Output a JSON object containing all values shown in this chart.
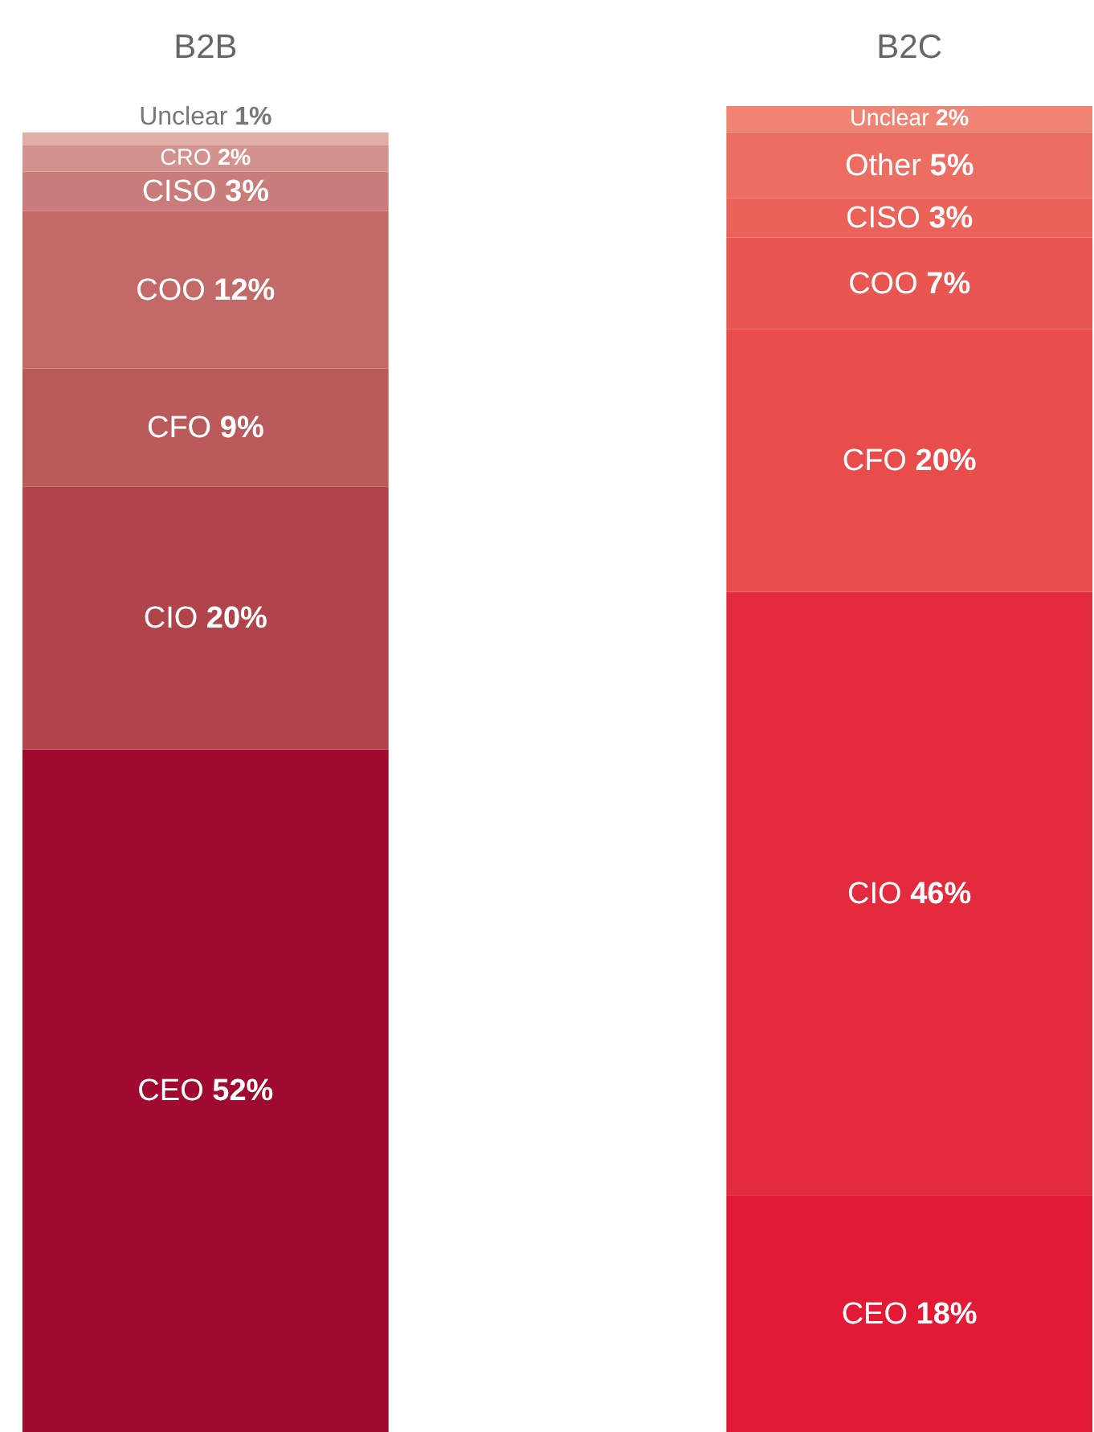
{
  "chart_data": {
    "type": "bar",
    "stacked": true,
    "categories": [
      "B2B",
      "B2C"
    ],
    "series": [
      {
        "name": "CEO",
        "colors": [
          "#a00a30",
          "#e31a35"
        ],
        "values": [
          52,
          18
        ],
        "value_labels": [
          "52%",
          "18%"
        ]
      },
      {
        "name": "CIO",
        "colors": [
          "#b0444a",
          "#e42a3d"
        ],
        "values": [
          20,
          46
        ],
        "value_labels": [
          "20%",
          "46%"
        ]
      },
      {
        "name": "CFO",
        "colors": [
          "#bb5a5a",
          "#e84c4b"
        ],
        "values": [
          9,
          20
        ],
        "value_labels": [
          "9%",
          "20%"
        ]
      },
      {
        "name": "COO",
        "colors": [
          "#c36a69",
          "#e95550"
        ],
        "values": [
          12,
          7
        ],
        "value_labels": [
          "12%",
          "7%"
        ]
      },
      {
        "name": "CISO",
        "colors": [
          "#c97c7a",
          "#eb6259"
        ],
        "values": [
          3,
          3
        ],
        "value_labels": [
          "3%",
          "3%"
        ]
      },
      {
        "name": "CRO",
        "colors": [
          "#d4928e",
          null
        ],
        "values": [
          2,
          null
        ],
        "value_labels": [
          "2%",
          null
        ]
      },
      {
        "name": "Other",
        "colors": [
          null,
          "#ec6d62"
        ],
        "values": [
          null,
          5
        ],
        "value_labels": [
          null,
          "5%"
        ]
      },
      {
        "name": "Unclear",
        "colors": [
          "#e0aea7",
          "#ef8374"
        ],
        "values": [
          1,
          2
        ],
        "value_labels": [
          "1%",
          "2%"
        ]
      }
    ]
  }
}
